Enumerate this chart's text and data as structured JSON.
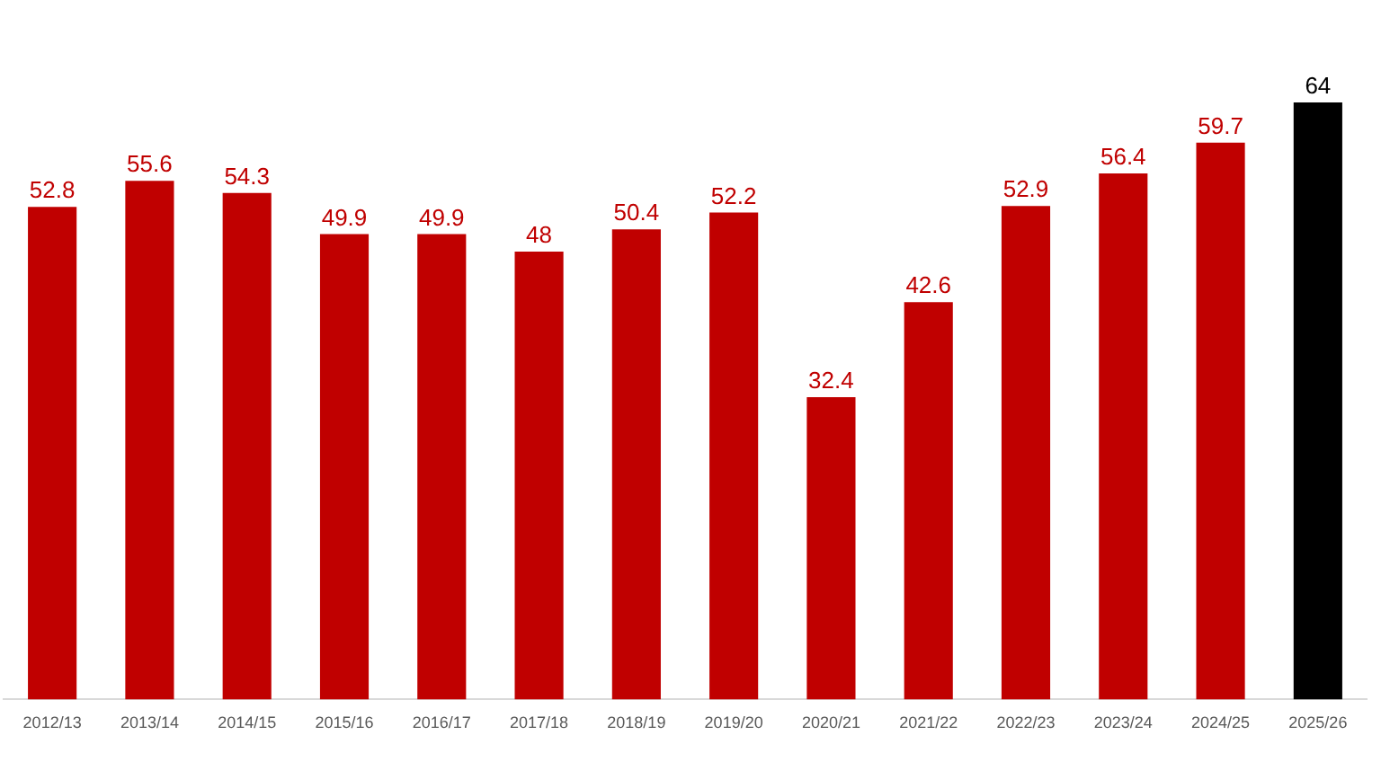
{
  "chart_data": {
    "type": "bar",
    "categories": [
      "2012/13",
      "2013/14",
      "2014/15",
      "2015/16",
      "2016/17",
      "2017/18",
      "2018/19",
      "2019/20",
      "2020/21",
      "2021/22",
      "2022/23",
      "2023/24",
      "2024/25",
      "2025/26"
    ],
    "values": [
      52.8,
      55.6,
      54.3,
      49.9,
      49.9,
      48,
      50.4,
      52.2,
      32.4,
      42.6,
      52.9,
      56.4,
      59.7,
      64
    ],
    "colors": [
      "#c00000",
      "#c00000",
      "#c00000",
      "#c00000",
      "#c00000",
      "#c00000",
      "#c00000",
      "#c00000",
      "#c00000",
      "#c00000",
      "#c00000",
      "#c00000",
      "#c00000",
      "#000000"
    ],
    "ylim": [
      0,
      64
    ],
    "tick_labels": "x",
    "grid": false,
    "legend": false,
    "data_labels": true
  }
}
